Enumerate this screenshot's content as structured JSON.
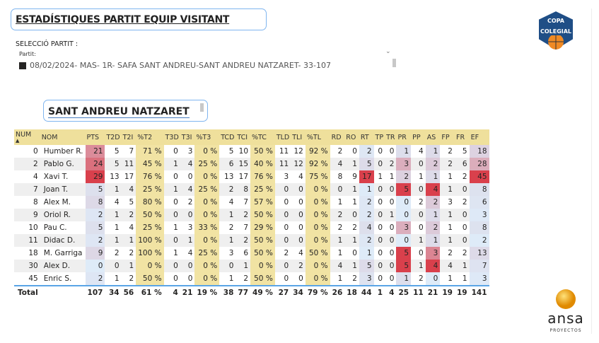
{
  "header": {
    "title": "ESTADÍSTIQUES PARTIT EQUIP VISITANT"
  },
  "filter": {
    "label": "SELECCIÓ PARTIT :",
    "field_label": "Partit:",
    "selected": "08/02/2024- MAS- 1R- SAFA SANT ANDREU-SANT ANDREU NATZARET- 33-107"
  },
  "team": {
    "name": "SANT ANDREU NATZARET"
  },
  "logos": {
    "copa": "COPA COLEGIAL",
    "ansa": "ansa",
    "ansa_sub": "PROYECTOS"
  },
  "colors": {
    "header_bg": "#efe09c",
    "pct_bg": "#f1e3a3",
    "heat_low": "#deebf8",
    "heat_mid": "#dccad9",
    "heat_high": "#d9404c",
    "total_border": "#5aa5e6"
  },
  "table": {
    "columns": [
      "NUM",
      "NOM",
      "PTS",
      "T2D",
      "T2I",
      "%T2",
      "T3D",
      "T3I",
      "%T3",
      "TCD",
      "TCI",
      "%TC",
      "TLD",
      "TLI",
      "%TL",
      "RD",
      "RO",
      "RT",
      "TP",
      "TR",
      "PR",
      "PP",
      "AS",
      "FP",
      "FR",
      "EF"
    ],
    "heat_columns": [
      2,
      17,
      20,
      22,
      25
    ],
    "pct_columns": [
      5,
      8,
      11,
      14
    ],
    "rows": [
      [
        "0",
        "Humber R.",
        "21",
        "5",
        "7",
        "71 %",
        "0",
        "3",
        "0 %",
        "5",
        "10",
        "50 %",
        "11",
        "12",
        "92 %",
        "2",
        "0",
        "2",
        "0",
        "0",
        "1",
        "4",
        "1",
        "2",
        "5",
        "18"
      ],
      [
        "2",
        "Pablo G.",
        "24",
        "5",
        "11",
        "45 %",
        "1",
        "4",
        "25 %",
        "6",
        "15",
        "40 %",
        "11",
        "12",
        "92 %",
        "4",
        "1",
        "5",
        "0",
        "2",
        "3",
        "0",
        "2",
        "2",
        "6",
        "28"
      ],
      [
        "4",
        "Xavi T.",
        "29",
        "13",
        "17",
        "76 %",
        "0",
        "0",
        "0 %",
        "13",
        "17",
        "76 %",
        "3",
        "4",
        "75 %",
        "8",
        "9",
        "17",
        "1",
        "1",
        "2",
        "1",
        "1",
        "1",
        "2",
        "45"
      ],
      [
        "7",
        "Joan T.",
        "5",
        "1",
        "4",
        "25 %",
        "1",
        "4",
        "25 %",
        "2",
        "8",
        "25 %",
        "0",
        "0",
        "0 %",
        "0",
        "1",
        "1",
        "0",
        "0",
        "5",
        "0",
        "4",
        "1",
        "0",
        "8"
      ],
      [
        "8",
        "Alex M.",
        "8",
        "4",
        "5",
        "80 %",
        "0",
        "2",
        "0 %",
        "4",
        "7",
        "57 %",
        "0",
        "0",
        "0 %",
        "1",
        "1",
        "2",
        "0",
        "0",
        "0",
        "2",
        "2",
        "3",
        "2",
        "6"
      ],
      [
        "9",
        "Oriol R.",
        "2",
        "1",
        "2",
        "50 %",
        "0",
        "0",
        "0 %",
        "1",
        "2",
        "50 %",
        "0",
        "0",
        "0 %",
        "2",
        "0",
        "2",
        "0",
        "1",
        "0",
        "0",
        "1",
        "1",
        "0",
        "3"
      ],
      [
        "10",
        "Pau C.",
        "5",
        "1",
        "4",
        "25 %",
        "1",
        "3",
        "33 %",
        "2",
        "7",
        "29 %",
        "0",
        "0",
        "0 %",
        "2",
        "2",
        "4",
        "0",
        "0",
        "3",
        "0",
        "2",
        "1",
        "0",
        "8"
      ],
      [
        "11",
        "Didac D.",
        "2",
        "1",
        "1",
        "100 %",
        "0",
        "1",
        "0 %",
        "1",
        "2",
        "50 %",
        "0",
        "0",
        "0 %",
        "1",
        "1",
        "2",
        "0",
        "0",
        "0",
        "1",
        "1",
        "1",
        "0",
        "2"
      ],
      [
        "18",
        "M. Garriga",
        "9",
        "2",
        "2",
        "100 %",
        "1",
        "4",
        "25 %",
        "3",
        "6",
        "50 %",
        "2",
        "4",
        "50 %",
        "1",
        "0",
        "1",
        "0",
        "0",
        "5",
        "0",
        "3",
        "2",
        "2",
        "13"
      ],
      [
        "30",
        "Alex D.",
        "0",
        "0",
        "1",
        "0 %",
        "0",
        "0",
        "0 %",
        "0",
        "1",
        "0 %",
        "0",
        "2",
        "0 %",
        "4",
        "1",
        "5",
        "0",
        "0",
        "5",
        "1",
        "4",
        "4",
        "1",
        "7"
      ],
      [
        "45",
        "Enric S.",
        "2",
        "1",
        "2",
        "50 %",
        "0",
        "0",
        "0 %",
        "1",
        "2",
        "50 %",
        "0",
        "0",
        "0 %",
        "1",
        "2",
        "3",
        "0",
        "0",
        "1",
        "2",
        "0",
        "1",
        "1",
        "3"
      ]
    ],
    "total": [
      "Total",
      "",
      "107",
      "34",
      "56",
      "61 %",
      "4",
      "21",
      "19 %",
      "38",
      "77",
      "49 %",
      "27",
      "34",
      "79 %",
      "26",
      "18",
      "44",
      "1",
      "4",
      "25",
      "11",
      "21",
      "19",
      "19",
      "141"
    ]
  }
}
